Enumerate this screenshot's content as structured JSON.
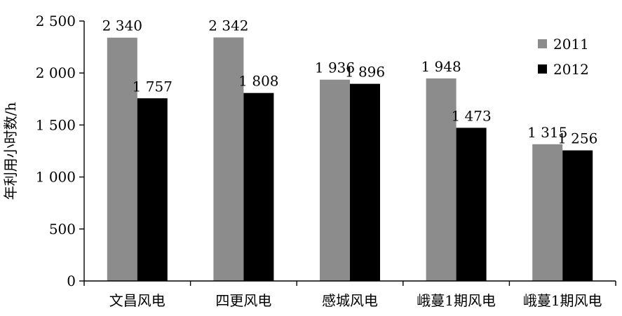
{
  "chart_data": {
    "type": "bar",
    "categories": [
      "文昌风电",
      "四更风电",
      "感城风电",
      "峨蔓1期风电",
      "峨蔓1期风电"
    ],
    "series": [
      {
        "name": "2011",
        "color": "#8c8c8c",
        "values": [
          2340,
          2342,
          1936,
          1948,
          1315
        ],
        "labels": [
          "2 340",
          "2 342",
          "1 936",
          "1 948",
          "1 315"
        ]
      },
      {
        "name": "2012",
        "color": "#000000",
        "values": [
          1757,
          1808,
          1896,
          1473,
          1256
        ],
        "labels": [
          "1 757",
          "1 808",
          "1 896",
          "1 473",
          "1 256"
        ]
      }
    ],
    "ylabel": "年利用小时数/h",
    "ylim": [
      0,
      2500
    ],
    "yticks": [
      0,
      500,
      1000,
      1500,
      2000,
      2500
    ],
    "ytick_labels": [
      "0",
      "500",
      "1 000",
      "1 500",
      "2 000",
      "2 500"
    ],
    "grid": false,
    "legend_position": "top-right"
  }
}
